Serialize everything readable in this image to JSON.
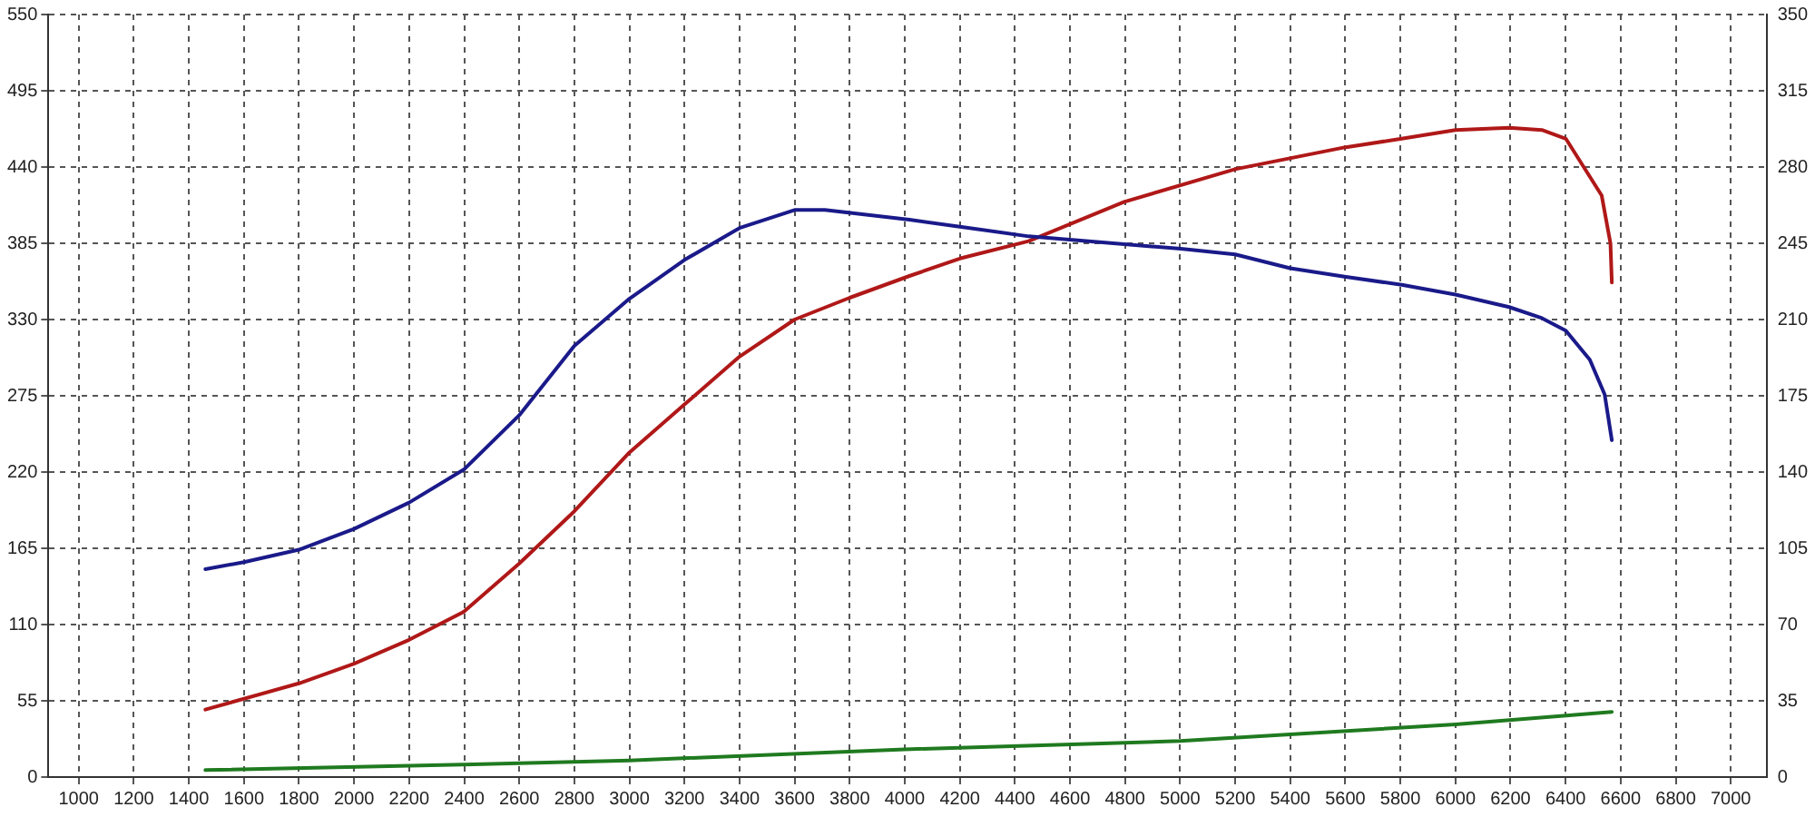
{
  "chart_data": {
    "type": "line",
    "xlim": [
      890,
      7130
    ],
    "xticks": [
      1000,
      1200,
      1400,
      1600,
      1800,
      2000,
      2200,
      2400,
      2600,
      2800,
      3000,
      3200,
      3400,
      3600,
      3800,
      4000,
      4200,
      4400,
      4600,
      4800,
      5000,
      5200,
      5400,
      5600,
      5800,
      6000,
      6200,
      6400,
      6600,
      6800,
      7000
    ],
    "ylim": [
      0,
      550
    ],
    "yticks": [
      0,
      55,
      110,
      165,
      220,
      275,
      330,
      385,
      440,
      495,
      550
    ],
    "y2lim": [
      0,
      350
    ],
    "y2ticks": [
      0,
      35,
      70,
      105,
      140,
      175,
      210,
      245,
      280,
      315,
      350
    ],
    "grid": true,
    "legend": false,
    "marker": "none",
    "line_style": "solid",
    "series": [
      {
        "color": "#1a1a8a",
        "x": [
          1460,
          1600,
          1800,
          2000,
          2200,
          2400,
          2600,
          2800,
          3000,
          3200,
          3400,
          3600,
          3710,
          4017,
          4200,
          4450,
          5003,
          5200,
          5400,
          5597,
          5805,
          6000,
          6195,
          6314,
          6401,
          6488,
          6542,
          6568
        ],
        "values": [
          150,
          155,
          164,
          179,
          198,
          222,
          261,
          311,
          345,
          373,
          396,
          409,
          409,
          402,
          397,
          390,
          381,
          377,
          367,
          361,
          355,
          348,
          339,
          331,
          322,
          301,
          276,
          243
        ]
      },
      {
        "color": "#b01818",
        "axis": "y2",
        "x": [
          1460,
          1800,
          2000,
          2200,
          2400,
          2600,
          2800,
          3000,
          3200,
          3400,
          3600,
          3800,
          4017,
          4200,
          4450,
          4797,
          5200,
          5597,
          5805,
          6000,
          6195,
          6314,
          6401,
          6466,
          6531,
          6563,
          6568
        ],
        "values": [
          31,
          43,
          52,
          63,
          76,
          98,
          122,
          149,
          171,
          193,
          210,
          220,
          230,
          238,
          246,
          264,
          279,
          289,
          293,
          297,
          298,
          297,
          293,
          280,
          267,
          245,
          227
        ]
      },
      {
        "color": "#1f7a1f",
        "x": [
          1460,
          2400,
          3000,
          4000,
          5000,
          6000,
          6568
        ],
        "values": [
          5,
          9,
          12,
          20,
          26,
          38,
          47
        ]
      }
    ]
  }
}
